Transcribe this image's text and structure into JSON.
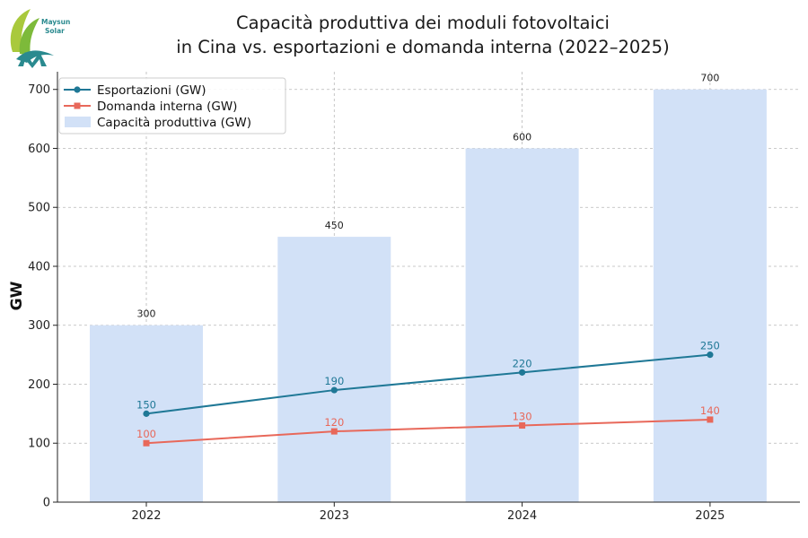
{
  "chart_data": {
    "type": "bar",
    "title_line1": "Capacità produttiva dei moduli fotovoltaici",
    "title_line2": "in Cina vs. esportazioni e domanda interna (2022–2025)",
    "xlabel": "",
    "ylabel": "GW",
    "categories": [
      "2022",
      "2023",
      "2024",
      "2025"
    ],
    "ylim": [
      0,
      730
    ],
    "yticks": [
      0,
      100,
      200,
      300,
      400,
      500,
      600,
      700
    ],
    "grid": true,
    "legend_position": "top-left",
    "bars": {
      "name": "Capacità produttiva (GW)",
      "values": [
        300,
        450,
        600,
        700
      ],
      "color": "#d2e1f7"
    },
    "series": [
      {
        "name": "Esportazioni (GW)",
        "values": [
          150,
          190,
          220,
          250
        ],
        "color": "#1f7896",
        "marker": "circle"
      },
      {
        "name": "Domanda interna (GW)",
        "values": [
          100,
          120,
          130,
          140
        ],
        "color": "#e8685a",
        "marker": "square"
      }
    ]
  },
  "logo": {
    "line1": "Maysun",
    "line2": "Solar"
  }
}
